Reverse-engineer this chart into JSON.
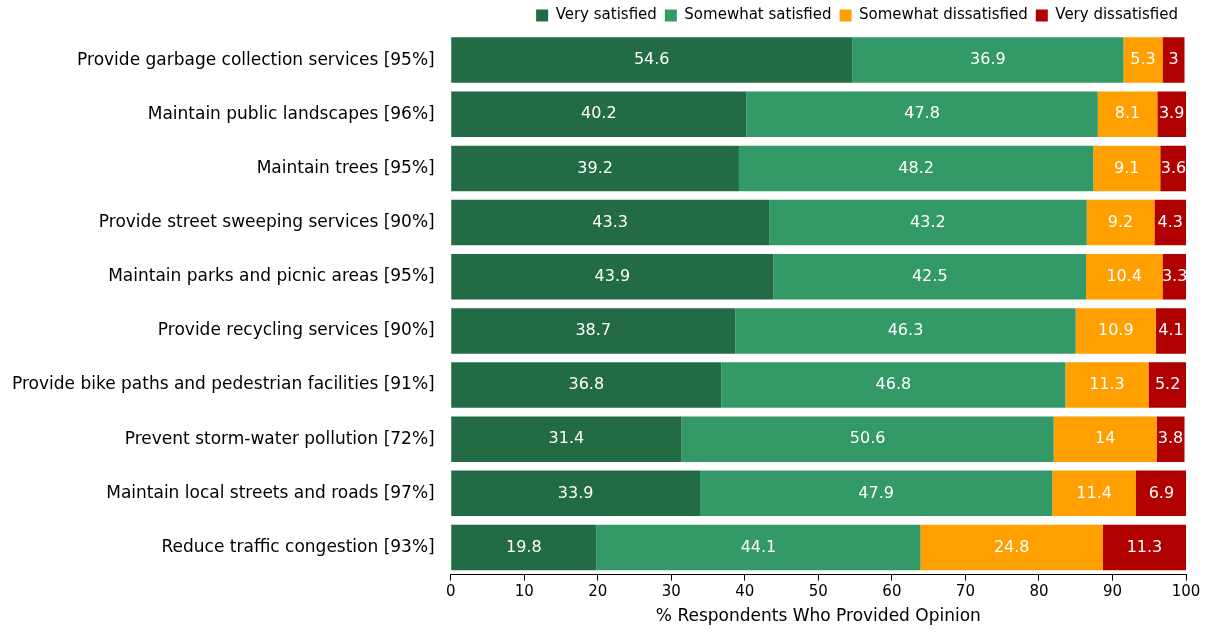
{
  "chart_data": {
    "type": "bar",
    "orientation": "horizontal",
    "stacked": true,
    "xlabel": "% Respondents Who Provided Opinion",
    "categories": [
      "Provide garbage collection services [95%]",
      "Maintain public landscapes [96%]",
      "Maintain trees [95%]",
      "Provide street sweeping services [90%]",
      "Maintain parks and picnic areas [95%]",
      "Provide recycling services [90%]",
      "Provide bike paths and pedestrian facilities [91%]",
      "Prevent storm-water pollution [72%]",
      "Maintain local streets and roads [97%]",
      "Reduce traffic congestion [93%]"
    ],
    "series": [
      {
        "name": "Very satisfied",
        "color": "#236b45",
        "values": [
          54.6,
          40.2,
          39.2,
          43.3,
          43.9,
          38.7,
          36.8,
          31.4,
          33.9,
          19.8
        ]
      },
      {
        "name": "Somewhat satisfied",
        "color": "#339966",
        "values": [
          36.9,
          47.8,
          48.2,
          43.2,
          42.5,
          46.3,
          46.8,
          50.6,
          47.9,
          44.1
        ]
      },
      {
        "name": "Somewhat dissatisfied",
        "color": "#ff9f00",
        "values": [
          5.3,
          8.1,
          9.1,
          9.2,
          10.4,
          10.9,
          11.3,
          14,
          11.4,
          24.8
        ]
      },
      {
        "name": "Very dissatisfied",
        "color": "#b00000",
        "values": [
          3,
          3.9,
          3.6,
          4.3,
          3.3,
          4.1,
          5.2,
          3.8,
          6.9,
          11.3
        ]
      }
    ],
    "xlim": [
      0,
      100
    ],
    "xticks": [
      0,
      10,
      20,
      30,
      40,
      50,
      60,
      70,
      80,
      90,
      100
    ],
    "grid": false,
    "legend": "top right",
    "data_labels": true
  }
}
